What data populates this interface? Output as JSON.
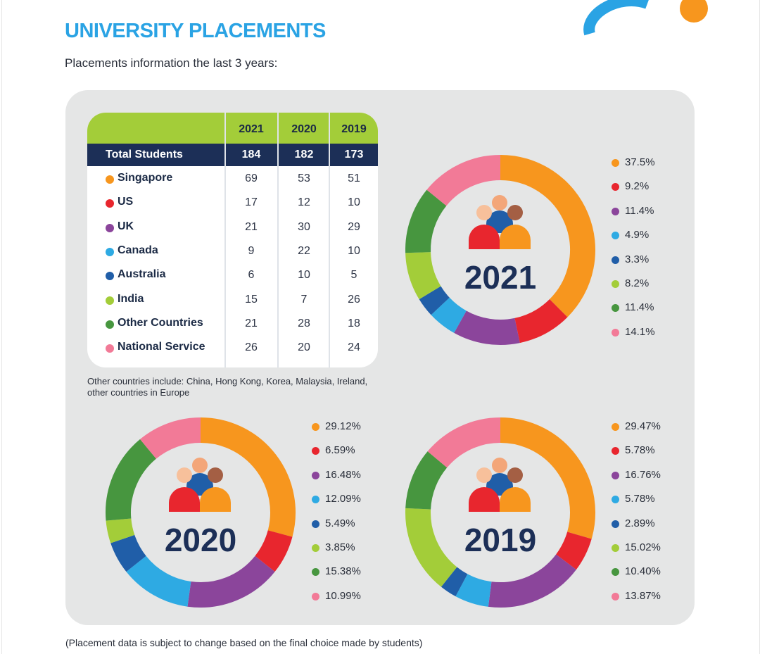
{
  "header": {
    "title": "UNIVERSITY PLACEMENTS",
    "subtitle": "Placements information the last 3 years:"
  },
  "colors": {
    "singapore": "#f7961e",
    "us": "#e8262e",
    "uk": "#8b459b",
    "canada": "#2eaae3",
    "australia": "#205ea8",
    "india": "#a3cd39",
    "other": "#47963f",
    "national_service": "#f27a97",
    "header_green": "#a3cd39",
    "header_navy": "#1c2f57",
    "title_blue": "#2aa3e4"
  },
  "table": {
    "years": [
      "2021",
      "2020",
      "2019"
    ],
    "total_label": "Total Students",
    "totals": [
      "184",
      "182",
      "173"
    ],
    "rows": [
      {
        "label": "Singapore",
        "values": [
          "69",
          "53",
          "51"
        ]
      },
      {
        "label": "US",
        "values": [
          "17",
          "12",
          "10"
        ]
      },
      {
        "label": "UK",
        "values": [
          "21",
          "30",
          "29"
        ]
      },
      {
        "label": "Canada",
        "values": [
          "9",
          "22",
          "10"
        ]
      },
      {
        "label": "Australia",
        "values": [
          "6",
          "10",
          "5"
        ]
      },
      {
        "label": "India",
        "values": [
          "15",
          "7",
          "26"
        ]
      },
      {
        "label": "Other Countries",
        "values": [
          "21",
          "28",
          "18"
        ]
      },
      {
        "label": "National Service",
        "values": [
          "26",
          "20",
          "24"
        ]
      }
    ]
  },
  "note": "Other countries include: China, Hong Kong, Korea, Malaysia, Ireland, other countries in Europe",
  "footer": "(Placement data is subject to change based on the final choice made by students)",
  "chart_data": [
    {
      "type": "pie",
      "title": "2021",
      "categories": [
        "Singapore",
        "US",
        "UK",
        "Canada",
        "Australia",
        "India",
        "Other Countries",
        "National Service"
      ],
      "values": [
        37.5,
        9.2,
        11.4,
        4.9,
        3.3,
        8.2,
        11.4,
        14.1
      ],
      "labels": [
        "37.5%",
        "9.2%",
        "11.4%",
        "4.9%",
        "3.3%",
        "8.2%",
        "11.4%",
        "14.1%"
      ]
    },
    {
      "type": "pie",
      "title": "2020",
      "categories": [
        "Singapore",
        "US",
        "UK",
        "Canada",
        "Australia",
        "India",
        "Other Countries",
        "National Service"
      ],
      "values": [
        29.12,
        6.59,
        16.48,
        12.09,
        5.49,
        3.85,
        15.38,
        10.99
      ],
      "labels": [
        "29.12%",
        "6.59%",
        "16.48%",
        "12.09%",
        "5.49%",
        "3.85%",
        "15.38%",
        "10.99%"
      ]
    },
    {
      "type": "pie",
      "title": "2019",
      "categories": [
        "Singapore",
        "US",
        "UK",
        "Canada",
        "Australia",
        "India",
        "Other Countries",
        "National Service"
      ],
      "values": [
        29.47,
        5.78,
        16.76,
        5.78,
        2.89,
        15.02,
        10.4,
        13.87
      ],
      "labels": [
        "29.47%",
        "5.78%",
        "16.76%",
        "5.78%",
        "2.89%",
        "15.02%",
        "10.40%",
        "13.87%"
      ]
    }
  ]
}
